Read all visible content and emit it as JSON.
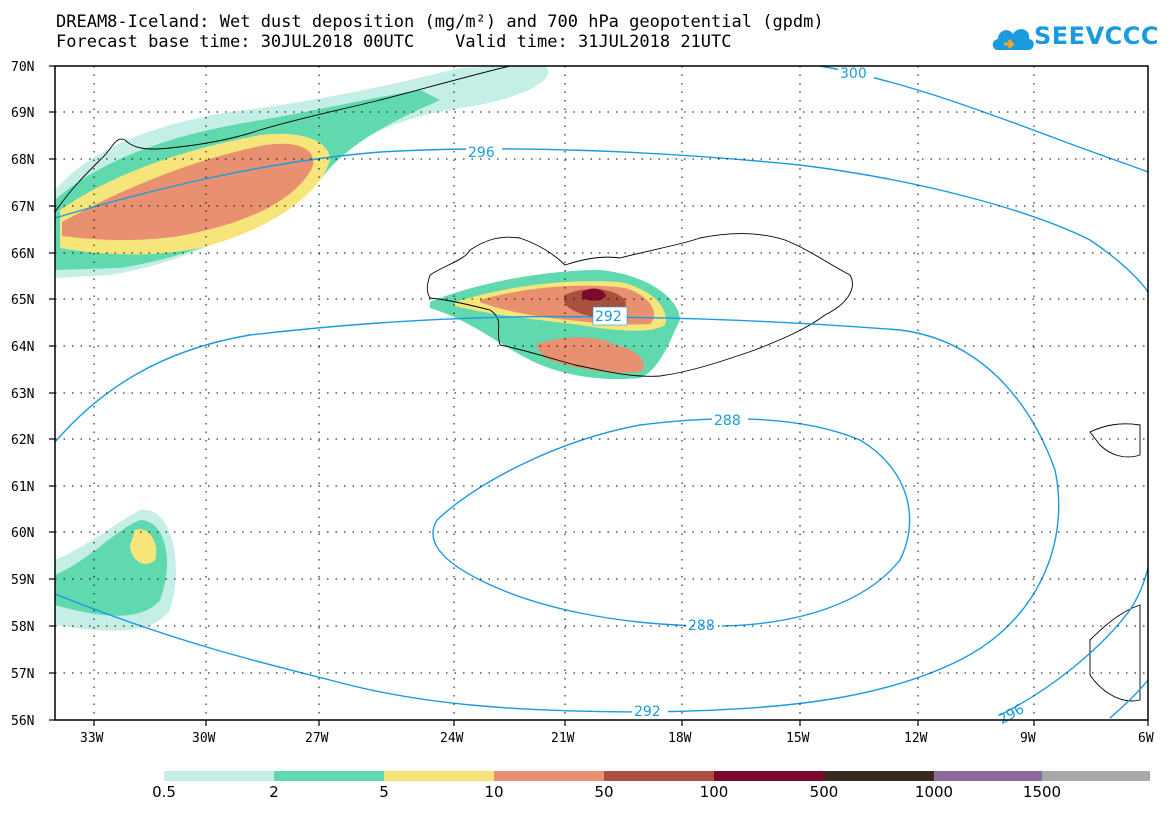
{
  "header": {
    "title_line1": "DREAM8-Iceland: Wet dust deposition (mg/m²) and 700 hPa geopotential (gpdm)",
    "title_line2": "Forecast base time: 30JUL2018 00UTC    Valid time: 31JUL2018 21UTC",
    "logo_text": "SEEVCCC"
  },
  "map": {
    "lat_labels": [
      "70N",
      "69N",
      "68N",
      "67N",
      "66N",
      "65N",
      "64N",
      "63N",
      "62N",
      "61N",
      "60N",
      "59N",
      "58N",
      "57N",
      "56N"
    ],
    "lon_labels": [
      "33W",
      "30W",
      "27W",
      "24W",
      "21W",
      "18W",
      "15W",
      "12W",
      "9W",
      "6W"
    ],
    "contour_labels": [
      "300",
      "296",
      "292",
      "288",
      "288",
      "292",
      "296"
    ],
    "contour_color": "#1a9be0"
  },
  "legend": {
    "labels": [
      "0.5",
      "2",
      "5",
      "10",
      "50",
      "100",
      "500",
      "1000",
      "1500"
    ],
    "colors": [
      "#c5eee6",
      "#5fd9ad",
      "#f6e57a",
      "#e8906f",
      "#a9503f",
      "#7c0a2c",
      "#3b2a1f",
      "#8c6a9a",
      "#a8a8a8"
    ]
  }
}
